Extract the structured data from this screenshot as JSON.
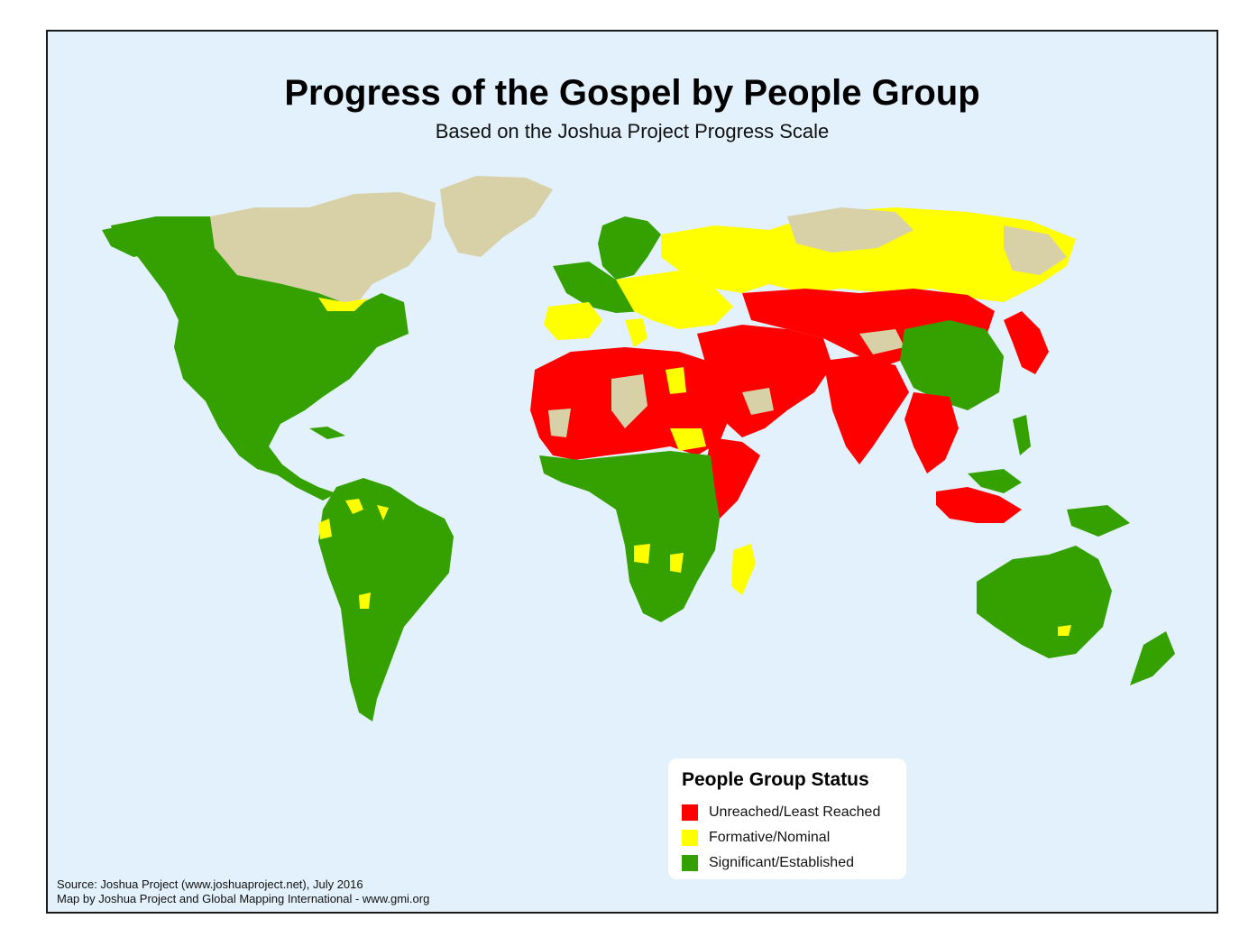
{
  "title": "Progress of the Gospel by People Group",
  "subtitle": "Based on the Joshua Project Progress Scale",
  "legend": {
    "title": "People Group Status",
    "items": [
      {
        "label": "Unreached/Least Reached",
        "color": "#ff0000"
      },
      {
        "label": "Formative/Nominal",
        "color": "#ffff00"
      },
      {
        "label": "Significant/Established",
        "color": "#35a100"
      }
    ]
  },
  "colors": {
    "ocean": "#e2f1fb",
    "no_data": "#d8d1a8",
    "unreached": "#ff0000",
    "formative": "#ffff00",
    "established": "#35a100"
  },
  "credits": {
    "source": "Source: Joshua Project (www.joshuaproject.net), July 2016",
    "mapby": "Map by Joshua Project and Global Mapping International - www.gmi.org"
  }
}
